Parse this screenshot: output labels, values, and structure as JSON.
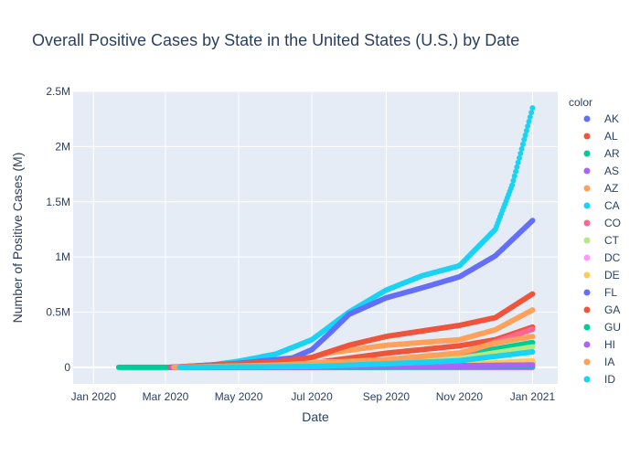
{
  "chart_data": {
    "type": "scatter",
    "title": "Overall Positive Cases by State in the United States (U.S.) by Date",
    "xlabel": "Date",
    "ylabel": "Number of Positive Cases (M)",
    "legend_title": "color",
    "legend_position": "right",
    "grid": true,
    "x_range": [
      "2019-12-15",
      "2021-01-22"
    ],
    "y_range": [
      -150000,
      2500000
    ],
    "x_ticks": [
      {
        "date": "2020-01-01",
        "label": "Jan 2020"
      },
      {
        "date": "2020-03-01",
        "label": "Mar 2020"
      },
      {
        "date": "2020-05-01",
        "label": "May 2020"
      },
      {
        "date": "2020-07-01",
        "label": "Jul 2020"
      },
      {
        "date": "2020-09-01",
        "label": "Sep 2020"
      },
      {
        "date": "2020-11-01",
        "label": "Nov 2020"
      },
      {
        "date": "2021-01-01",
        "label": "Jan 2021"
      }
    ],
    "y_ticks": [
      {
        "value": 0,
        "label": "0"
      },
      {
        "value": 500000,
        "label": "0.5M"
      },
      {
        "value": 1000000,
        "label": "1M"
      },
      {
        "value": 1500000,
        "label": "1.5M"
      },
      {
        "value": 2000000,
        "label": "2M"
      },
      {
        "value": 2500000,
        "label": "2.5M"
      }
    ],
    "series": [
      {
        "name": "AK",
        "color": "#636efa",
        "points": [
          [
            "2020-03-10",
            0
          ],
          [
            "2020-06-01",
            500
          ],
          [
            "2020-09-01",
            6000
          ],
          [
            "2020-11-01",
            20000
          ],
          [
            "2021-01-01",
            48000
          ]
        ]
      },
      {
        "name": "AL",
        "color": "#EF553B",
        "points": [
          [
            "2020-03-12",
            0
          ],
          [
            "2020-05-01",
            7000
          ],
          [
            "2020-07-01",
            38000
          ],
          [
            "2020-09-01",
            128000
          ],
          [
            "2020-11-01",
            195000
          ],
          [
            "2020-12-01",
            250000
          ],
          [
            "2021-01-01",
            365000
          ]
        ]
      },
      {
        "name": "AR",
        "color": "#00cc96",
        "points": [
          [
            "2020-01-22",
            0
          ],
          [
            "2020-03-11",
            0
          ],
          [
            "2020-06-01",
            8000
          ],
          [
            "2020-09-01",
            62000
          ],
          [
            "2020-11-01",
            110000
          ],
          [
            "2021-01-01",
            225000
          ]
        ]
      },
      {
        "name": "AS",
        "color": "#ab63fa",
        "points": [
          [
            "2020-03-15",
            0
          ],
          [
            "2021-01-01",
            0
          ]
        ]
      },
      {
        "name": "AZ",
        "color": "#FFA15A",
        "points": [
          [
            "2020-03-05",
            0
          ],
          [
            "2020-05-01",
            8000
          ],
          [
            "2020-06-15",
            40000
          ],
          [
            "2020-07-15",
            130000
          ],
          [
            "2020-09-01",
            200000
          ],
          [
            "2020-11-01",
            250000
          ],
          [
            "2020-12-01",
            340000
          ],
          [
            "2021-01-01",
            520000
          ]
        ]
      },
      {
        "name": "CA",
        "color": "#19d3f3",
        "points": [
          [
            "2020-03-05",
            0
          ],
          [
            "2020-04-01",
            10000
          ],
          [
            "2020-05-01",
            55000
          ],
          [
            "2020-06-01",
            120000
          ],
          [
            "2020-07-01",
            250000
          ],
          [
            "2020-08-01",
            500000
          ],
          [
            "2020-09-01",
            700000
          ],
          [
            "2020-10-01",
            830000
          ],
          [
            "2020-11-01",
            920000
          ],
          [
            "2020-12-01",
            1250000
          ],
          [
            "2020-12-15",
            1650000
          ],
          [
            "2021-01-01",
            2350000
          ]
        ]
      },
      {
        "name": "CO",
        "color": "#FF6692",
        "points": [
          [
            "2020-03-08",
            0
          ],
          [
            "2020-06-01",
            28000
          ],
          [
            "2020-09-01",
            60000
          ],
          [
            "2020-11-01",
            110000
          ],
          [
            "2020-12-01",
            230000
          ],
          [
            "2021-01-01",
            345000
          ]
        ]
      },
      {
        "name": "CT",
        "color": "#B6E880",
        "points": [
          [
            "2020-03-08",
            0
          ],
          [
            "2020-05-01",
            28000
          ],
          [
            "2020-07-01",
            47000
          ],
          [
            "2020-09-01",
            54000
          ],
          [
            "2020-11-01",
            80000
          ],
          [
            "2021-01-01",
            185000
          ]
        ]
      },
      {
        "name": "DC",
        "color": "#FF97FF",
        "points": [
          [
            "2020-03-10",
            0
          ],
          [
            "2020-06-01",
            10000
          ],
          [
            "2020-09-01",
            15000
          ],
          [
            "2020-11-01",
            17000
          ],
          [
            "2021-01-01",
            29000
          ]
        ]
      },
      {
        "name": "DE",
        "color": "#FECB52",
        "points": [
          [
            "2020-03-12",
            0
          ],
          [
            "2020-06-01",
            10000
          ],
          [
            "2020-09-01",
            17000
          ],
          [
            "2020-11-01",
            24000
          ],
          [
            "2021-01-01",
            58000
          ]
        ]
      },
      {
        "name": "FL",
        "color": "#636efa",
        "points": [
          [
            "2020-03-05",
            0
          ],
          [
            "2020-05-01",
            36000
          ],
          [
            "2020-06-15",
            85000
          ],
          [
            "2020-07-01",
            160000
          ],
          [
            "2020-07-15",
            300000
          ],
          [
            "2020-08-01",
            480000
          ],
          [
            "2020-09-01",
            630000
          ],
          [
            "2020-10-01",
            720000
          ],
          [
            "2020-11-01",
            820000
          ],
          [
            "2020-12-01",
            1010000
          ],
          [
            "2021-01-01",
            1330000
          ]
        ]
      },
      {
        "name": "GA",
        "color": "#EF553B",
        "points": [
          [
            "2020-03-05",
            0
          ],
          [
            "2020-06-01",
            50000
          ],
          [
            "2020-07-01",
            90000
          ],
          [
            "2020-08-01",
            200000
          ],
          [
            "2020-09-01",
            280000
          ],
          [
            "2020-11-01",
            380000
          ],
          [
            "2020-12-01",
            450000
          ],
          [
            "2021-01-01",
            665000
          ]
        ]
      },
      {
        "name": "GU",
        "color": "#00cc96",
        "points": [
          [
            "2020-03-15",
            0
          ],
          [
            "2020-09-01",
            1500
          ],
          [
            "2021-01-01",
            7500
          ]
        ]
      },
      {
        "name": "HI",
        "color": "#ab63fa",
        "points": [
          [
            "2020-03-06",
            0
          ],
          [
            "2020-07-01",
            1000
          ],
          [
            "2020-09-01",
            10000
          ],
          [
            "2020-11-01",
            15000
          ],
          [
            "2021-01-01",
            22000
          ]
        ]
      },
      {
        "name": "IA",
        "color": "#FFA15A",
        "points": [
          [
            "2020-03-08",
            0
          ],
          [
            "2020-06-01",
            20000
          ],
          [
            "2020-09-01",
            70000
          ],
          [
            "2020-11-01",
            130000
          ],
          [
            "2020-12-01",
            220000
          ],
          [
            "2021-01-01",
            280000
          ]
        ]
      },
      {
        "name": "ID",
        "color": "#19d3f3",
        "points": [
          [
            "2020-03-13",
            0
          ],
          [
            "2020-07-01",
            7000
          ],
          [
            "2020-09-01",
            32000
          ],
          [
            "2020-11-01",
            60000
          ],
          [
            "2021-01-01",
            140000
          ]
        ]
      }
    ],
    "background_series_note": ""
  }
}
